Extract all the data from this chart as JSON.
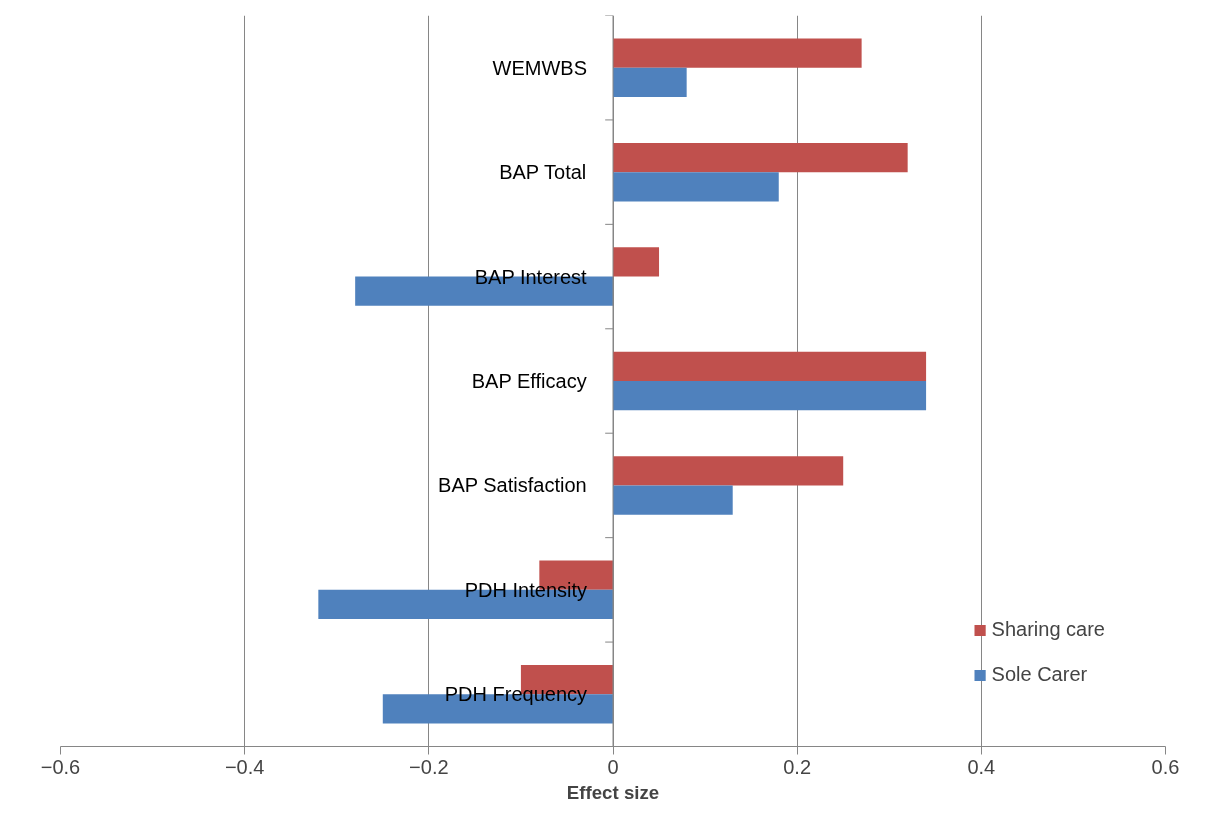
{
  "chart_data": {
    "type": "bar",
    "orientation": "horizontal",
    "xlabel": "Effect size",
    "categories": [
      "WEMWBS",
      "BAP Total",
      "BAP Interest",
      "BAP Efficacy",
      "BAP Satisfaction",
      "PDH Intensity",
      "PDH Frequency"
    ],
    "series": [
      {
        "name": "Sharing care",
        "color": "#c0504d",
        "values": [
          0.27,
          0.32,
          0.05,
          0.34,
          0.25,
          -0.08,
          -0.1
        ]
      },
      {
        "name": "Sole Carer",
        "color": "#4f81bd",
        "values": [
          0.08,
          0.18,
          -0.28,
          0.34,
          0.13,
          -0.32,
          -0.25
        ]
      }
    ],
    "xlim": [
      -0.6,
      0.6
    ],
    "xticks": [
      -0.6,
      -0.4,
      -0.2,
      0,
      0.2,
      0.4,
      0.6
    ],
    "grid": "x",
    "legend": "bottom right"
  }
}
